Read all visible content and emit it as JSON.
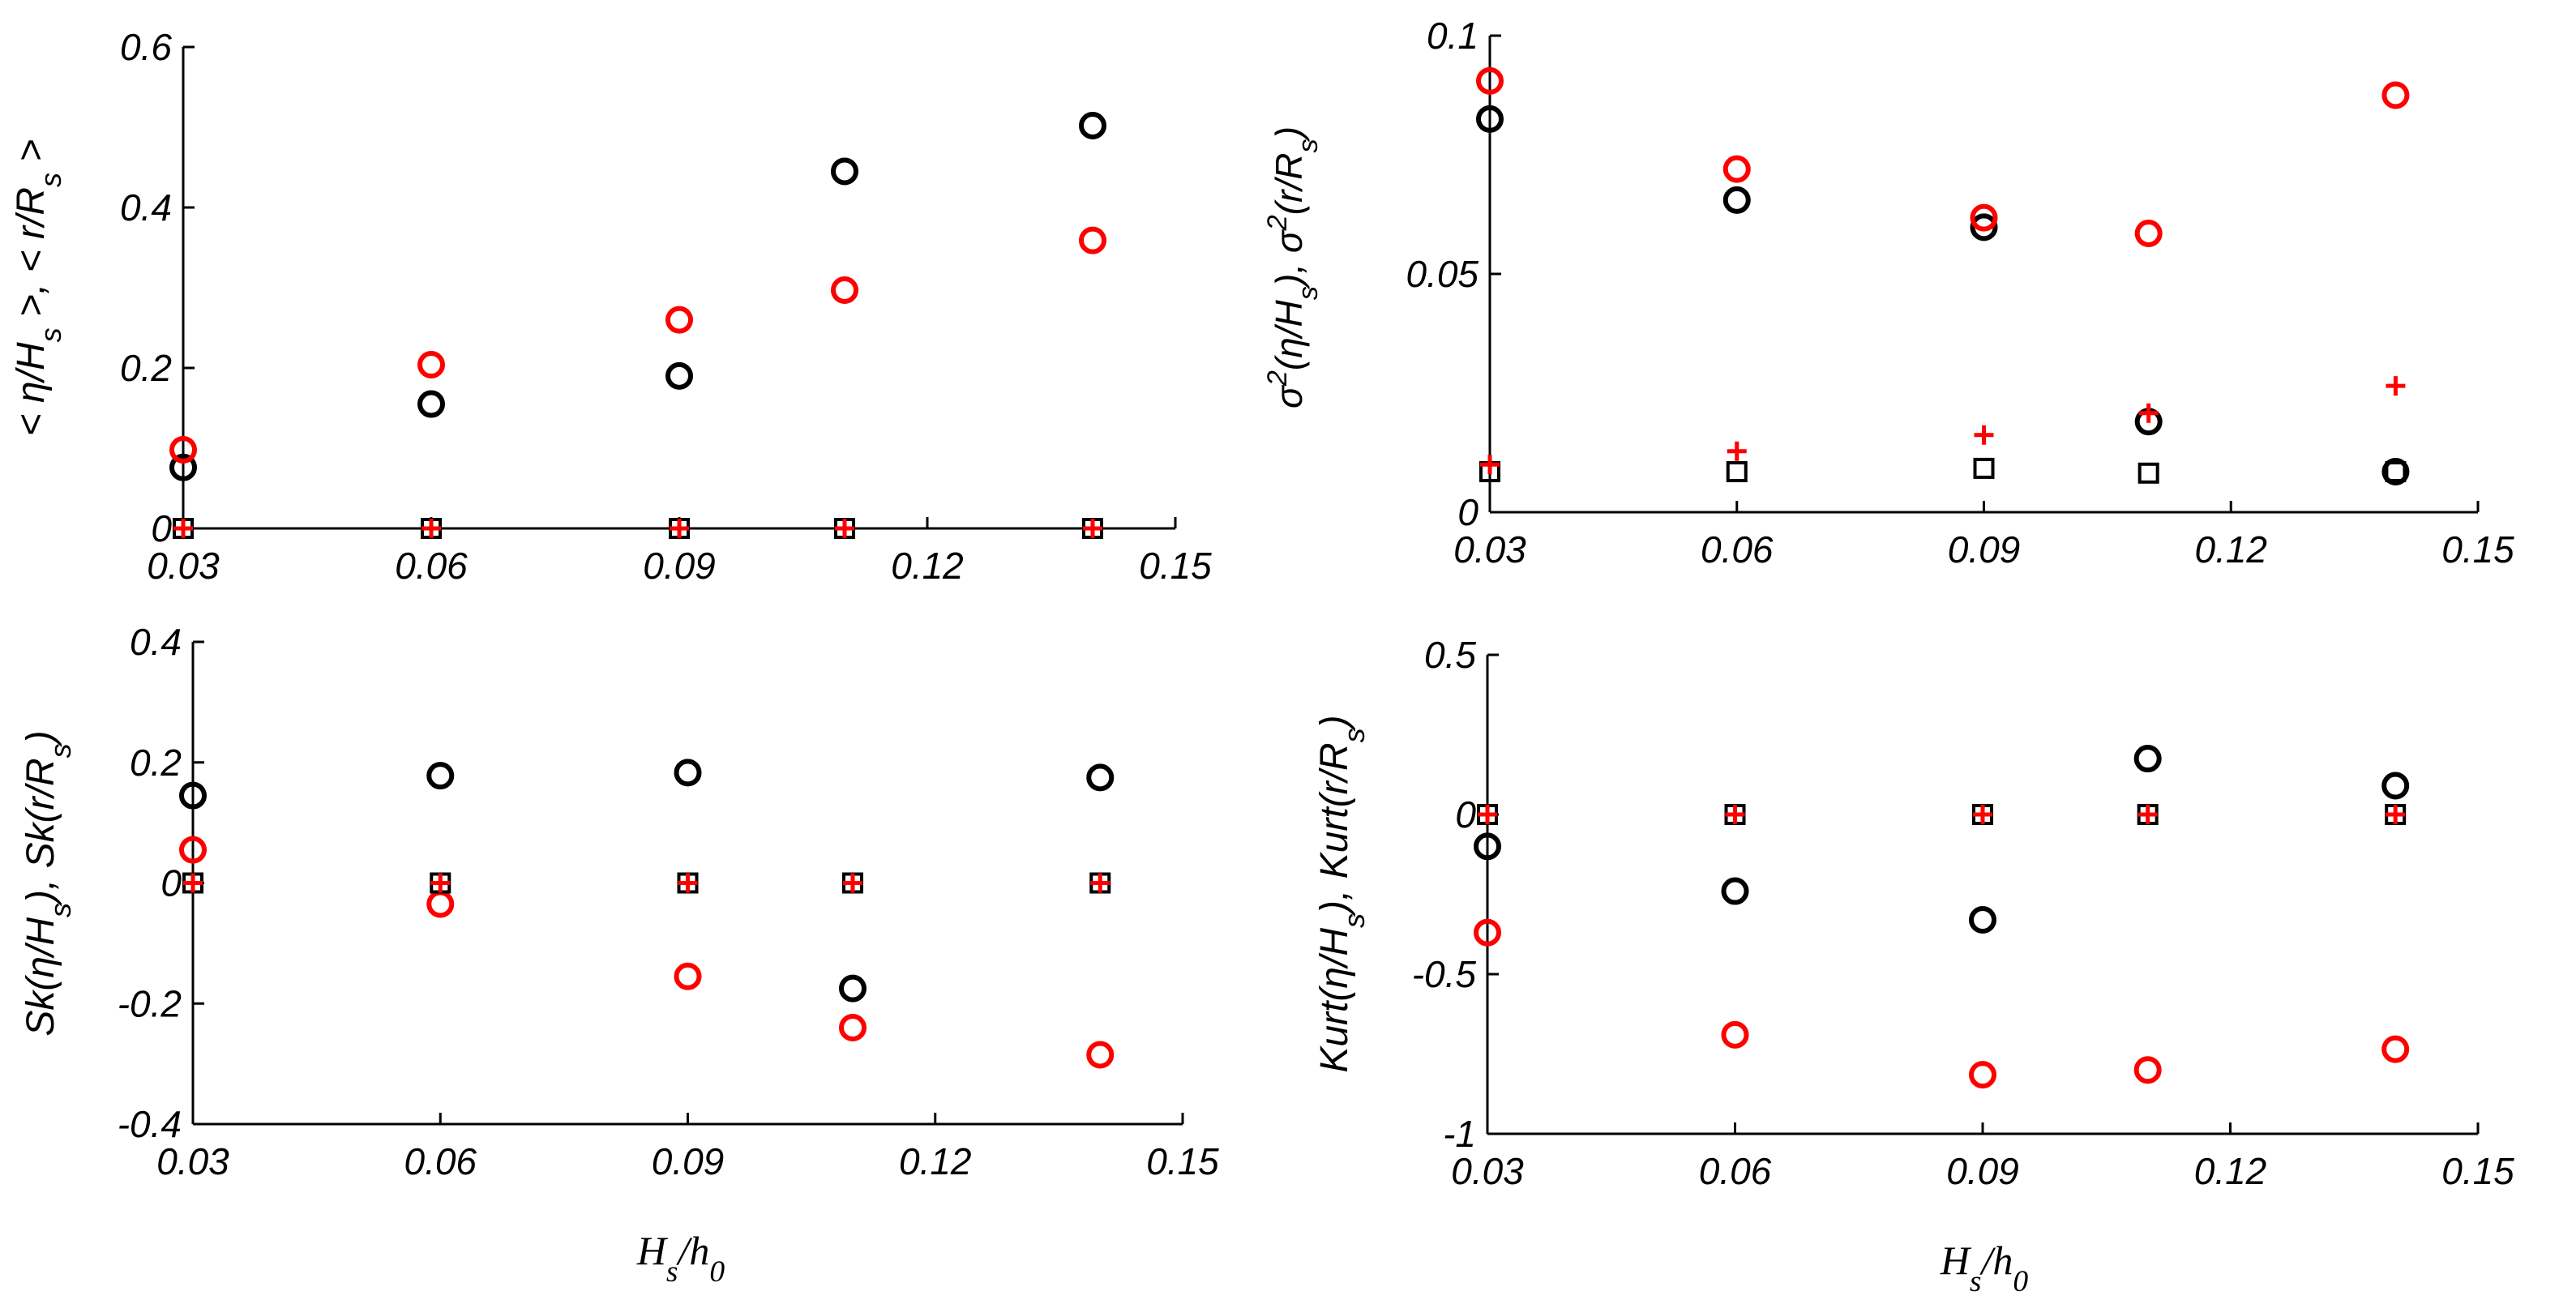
{
  "colors": {
    "black": "#000000",
    "red": "#ff0000"
  },
  "chart_data": [
    {
      "type": "scatter",
      "title": "",
      "xlabel": "",
      "ylabel": "< η/H_s >, < r/R_s >",
      "xlim": [
        0.03,
        0.15
      ],
      "ylim": [
        0,
        0.6
      ],
      "xticks": [
        "0.03",
        "0.06",
        "0.09",
        "0.12",
        "0.15"
      ],
      "yticks": [
        "0",
        "0.2",
        "0.4",
        "0.6"
      ],
      "grid": false,
      "series": [
        {
          "marker": "circle",
          "color": "#000000",
          "x": [
            0.03,
            0.06,
            0.09,
            0.11,
            0.14
          ],
          "y": [
            0.076,
            0.155,
            0.19,
            0.445,
            0.502
          ]
        },
        {
          "marker": "circle",
          "color": "#ff0000",
          "x": [
            0.03,
            0.06,
            0.09,
            0.11,
            0.14
          ],
          "y": [
            0.098,
            0.204,
            0.26,
            0.297,
            0.359
          ]
        },
        {
          "marker": "square",
          "color": "#000000",
          "x": [
            0.03,
            0.06,
            0.09,
            0.11,
            0.14
          ],
          "y": [
            0,
            0,
            0,
            0,
            0
          ]
        },
        {
          "marker": "plus",
          "color": "#ff0000",
          "x": [
            0.03,
            0.06,
            0.09,
            0.11,
            0.14
          ],
          "y": [
            0,
            0,
            0,
            0,
            0
          ]
        }
      ]
    },
    {
      "type": "scatter",
      "title": "",
      "xlabel": "",
      "ylabel": "σ²(η/H_s), σ²(r/R_s)",
      "xlim": [
        0.03,
        0.15
      ],
      "ylim": [
        0,
        0.1
      ],
      "xticks": [
        "0.03",
        "0.06",
        "0.09",
        "0.12",
        "0.15"
      ],
      "yticks": [
        "0",
        "0.05",
        "0.1"
      ],
      "grid": false,
      "series": [
        {
          "marker": "circle",
          "color": "#000000",
          "x": [
            0.03,
            0.06,
            0.09,
            0.11,
            0.14
          ],
          "y": [
            0.0825,
            0.0655,
            0.0598,
            0.019,
            0.0085
          ]
        },
        {
          "marker": "circle",
          "color": "#ff0000",
          "x": [
            0.03,
            0.06,
            0.09,
            0.11,
            0.14
          ],
          "y": [
            0.0905,
            0.072,
            0.0618,
            0.0585,
            0.0875
          ]
        },
        {
          "marker": "square",
          "color": "#000000",
          "x": [
            0.03,
            0.06,
            0.09,
            0.11,
            0.14
          ],
          "y": [
            0.0085,
            0.0085,
            0.0092,
            0.0082,
            0.0085
          ]
        },
        {
          "marker": "plus",
          "color": "#ff0000",
          "x": [
            0.03,
            0.06,
            0.09,
            0.11,
            0.14
          ],
          "y": [
            0.01,
            0.0128,
            0.0162,
            0.0208,
            0.0265
          ]
        }
      ]
    },
    {
      "type": "scatter",
      "title": "",
      "xlabel": "H_s/h_0",
      "ylabel": "Sk(η/H_s), Sk(r/R_s)",
      "xlim": [
        0.03,
        0.15
      ],
      "ylim": [
        -0.4,
        0.4
      ],
      "xticks": [
        "0.03",
        "0.06",
        "0.09",
        "0.12",
        "0.15"
      ],
      "yticks": [
        "-0.4",
        "-0.2",
        "0",
        "0.2",
        "0.4"
      ],
      "grid": false,
      "series": [
        {
          "marker": "circle",
          "color": "#000000",
          "x": [
            0.03,
            0.06,
            0.09,
            0.11,
            0.14
          ],
          "y": [
            0.145,
            0.178,
            0.183,
            -0.175,
            0.175
          ]
        },
        {
          "marker": "circle",
          "color": "#ff0000",
          "x": [
            0.03,
            0.06,
            0.09,
            0.11,
            0.14
          ],
          "y": [
            0.055,
            -0.035,
            -0.155,
            -0.24,
            -0.285
          ]
        },
        {
          "marker": "square",
          "color": "#000000",
          "x": [
            0.03,
            0.06,
            0.09,
            0.11,
            0.14
          ],
          "y": [
            0,
            0,
            0,
            0,
            0
          ]
        },
        {
          "marker": "plus",
          "color": "#ff0000",
          "x": [
            0.03,
            0.06,
            0.09,
            0.11,
            0.14
          ],
          "y": [
            0,
            0,
            0,
            0,
            0
          ]
        }
      ]
    },
    {
      "type": "scatter",
      "title": "",
      "xlabel": "H_s/h_0",
      "ylabel": "Kurt(η/H_s), Kurt(r/R_s)",
      "xlim": [
        0.03,
        0.15
      ],
      "ylim": [
        -1,
        0.5
      ],
      "xticks": [
        "0.03",
        "0.06",
        "0.09",
        "0.12",
        "0.15"
      ],
      "yticks": [
        "-1",
        "-0.5",
        "0",
        "0.5"
      ],
      "grid": false,
      "series": [
        {
          "marker": "circle",
          "color": "#000000",
          "x": [
            0.03,
            0.06,
            0.09,
            0.11,
            0.14
          ],
          "y": [
            -0.1,
            -0.24,
            -0.33,
            0.175,
            0.09
          ]
        },
        {
          "marker": "circle",
          "color": "#ff0000",
          "x": [
            0.03,
            0.06,
            0.09,
            0.11,
            0.14
          ],
          "y": [
            -0.37,
            -0.69,
            -0.815,
            -0.8,
            -0.735
          ]
        },
        {
          "marker": "square",
          "color": "#000000",
          "x": [
            0.03,
            0.06,
            0.09,
            0.11,
            0.14
          ],
          "y": [
            0,
            0,
            0,
            0,
            0
          ]
        },
        {
          "marker": "plus",
          "color": "#ff0000",
          "x": [
            0.03,
            0.06,
            0.09,
            0.11,
            0.14
          ],
          "y": [
            0,
            0,
            0,
            0,
            0
          ]
        }
      ]
    }
  ]
}
